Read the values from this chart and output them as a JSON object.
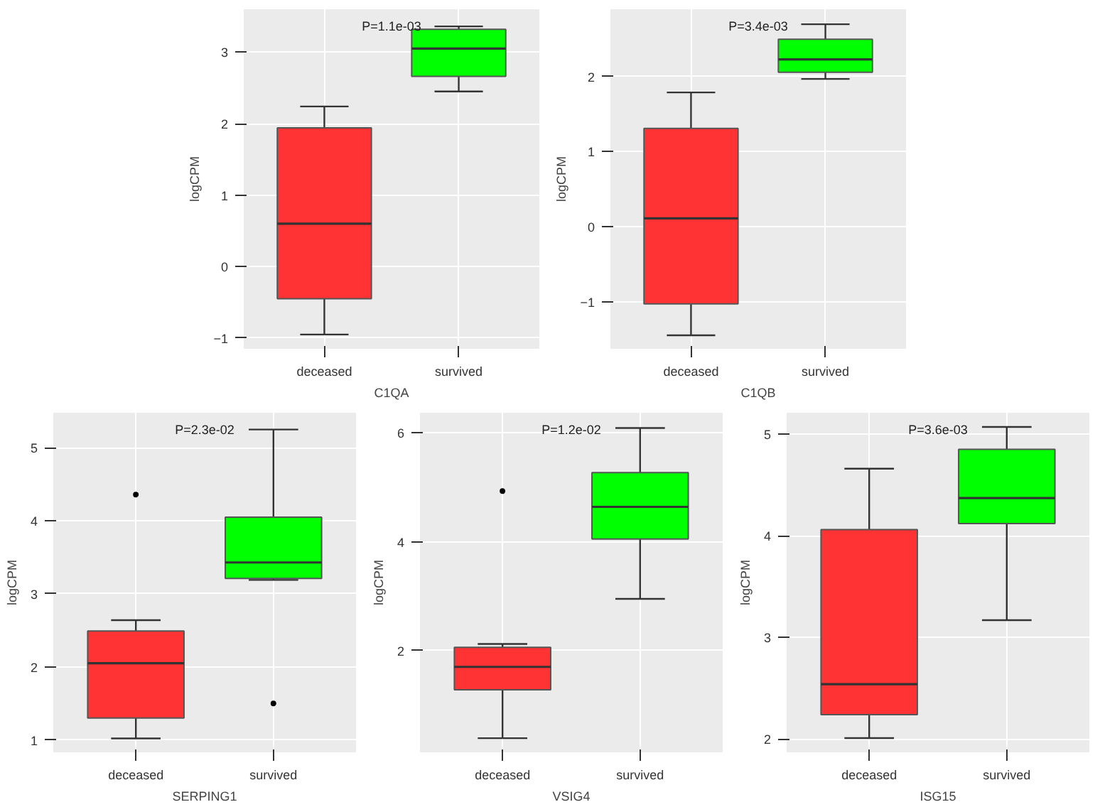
{
  "chart_data": [
    {
      "type": "box",
      "xlabel": "C1QA",
      "ylabel": "logCPM",
      "annotations": [
        "P=1.1e-03"
      ],
      "categories": [
        "deceased",
        "survived"
      ],
      "colors": [
        "#ff3333",
        "#00ff00"
      ],
      "ylim": [
        -1.15,
        3.6
      ],
      "yticks": [
        -1,
        0,
        1,
        2,
        3
      ],
      "grid": true,
      "boxes": [
        {
          "low": -0.95,
          "q1": -0.45,
          "median": 0.6,
          "q3": 1.94,
          "high": 2.24
        },
        {
          "low": 2.45,
          "q1": 2.66,
          "median": 3.05,
          "q3": 3.32,
          "high": 3.36
        }
      ]
    },
    {
      "type": "box",
      "xlabel": "C1QB",
      "ylabel": "logCPM",
      "annotations": [
        "P=3.4e-03"
      ],
      "categories": [
        "deceased",
        "survived"
      ],
      "colors": [
        "#ff3333",
        "#00ff00"
      ],
      "ylim": [
        -1.63,
        2.9
      ],
      "yticks": [
        -1,
        0,
        1,
        2
      ],
      "grid": true,
      "boxes": [
        {
          "low": -1.45,
          "q1": -1.03,
          "median": 0.11,
          "q3": 1.31,
          "high": 1.79
        },
        {
          "low": 1.97,
          "q1": 2.06,
          "median": 2.23,
          "q3": 2.5,
          "high": 2.7
        }
      ]
    },
    {
      "type": "box",
      "xlabel": "SERPING1",
      "ylabel": "logCPM",
      "annotations": [
        "P=2.3e-02"
      ],
      "categories": [
        "deceased",
        "survived"
      ],
      "colors": [
        "#ff3333",
        "#00ff00"
      ],
      "ylim": [
        0.83,
        5.48
      ],
      "yticks": [
        1,
        2,
        3,
        4,
        5
      ],
      "grid": true,
      "boxes": [
        {
          "low": 1.02,
          "q1": 1.3,
          "median": 2.05,
          "q3": 2.49,
          "high": 2.64,
          "outliers": [
            4.36
          ]
        },
        {
          "low": 3.19,
          "q1": 3.21,
          "median": 3.43,
          "q3": 4.05,
          "high": 5.25,
          "outliers": [
            1.5
          ]
        }
      ]
    },
    {
      "type": "box",
      "xlabel": "VSIG4",
      "ylabel": "logCPM",
      "annotations": [
        "P=1.2e-02"
      ],
      "categories": [
        "deceased",
        "survived"
      ],
      "colors": [
        "#ff3333",
        "#00ff00"
      ],
      "ylim": [
        0.13,
        6.37
      ],
      "yticks": [
        2,
        4,
        6
      ],
      "grid": true,
      "boxes": [
        {
          "low": 0.39,
          "q1": 1.28,
          "median": 1.7,
          "q3": 2.06,
          "high": 2.12,
          "outliers": [
            4.93
          ]
        },
        {
          "low": 2.95,
          "q1": 4.05,
          "median": 4.64,
          "q3": 5.27,
          "high": 6.09
        }
      ]
    },
    {
      "type": "box",
      "xlabel": "ISG15",
      "ylabel": "logCPM",
      "annotations": [
        "P=3.6e-03"
      ],
      "categories": [
        "deceased",
        "survived"
      ],
      "colors": [
        "#ff3333",
        "#00ff00"
      ],
      "ylim": [
        1.87,
        5.21
      ],
      "yticks": [
        2,
        3,
        4,
        5
      ],
      "grid": true,
      "boxes": [
        {
          "low": 2.01,
          "q1": 2.24,
          "median": 2.54,
          "q3": 4.06,
          "high": 4.66
        },
        {
          "low": 3.17,
          "q1": 4.12,
          "median": 4.37,
          "q3": 4.85,
          "high": 5.07
        }
      ]
    }
  ]
}
